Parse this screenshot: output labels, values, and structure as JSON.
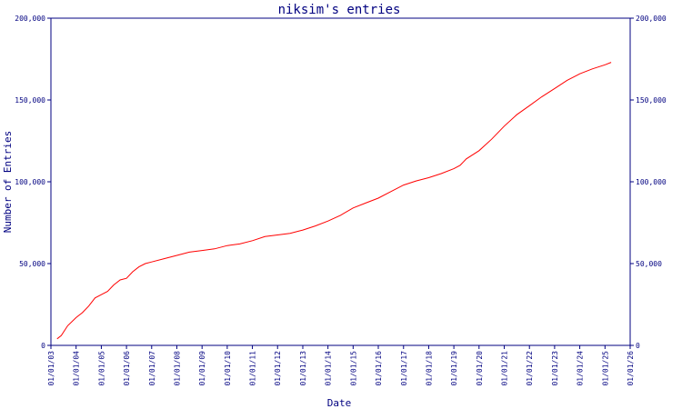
{
  "chart_data": {
    "type": "line",
    "title": "niksim's entries",
    "xlabel": "Date",
    "ylabel": "Number of Entries",
    "x_ticks": [
      "01/01/03",
      "01/01/04",
      "01/01/05",
      "01/01/06",
      "01/01/07",
      "01/01/08",
      "01/01/09",
      "01/01/10",
      "01/01/11",
      "01/01/12",
      "01/01/13",
      "01/01/14",
      "01/01/15",
      "01/01/16",
      "01/01/17",
      "01/01/18",
      "01/01/19",
      "01/01/20",
      "01/01/21",
      "01/01/22",
      "01/01/23",
      "01/01/24",
      "01/01/25",
      "01/01/26"
    ],
    "y_ticks": [
      0,
      50000,
      100000,
      150000,
      200000
    ],
    "y_tick_labels": [
      "0",
      "50,000",
      "100,000",
      "150,000",
      "200,000"
    ],
    "ylim": [
      0,
      200000
    ],
    "xlim": [
      "2003-01-01",
      "2026-01-01"
    ],
    "grid": false,
    "right_axis_mirrored": true,
    "series_color": "#ff0000",
    "axis_color": "#000080",
    "series": [
      {
        "x": [
          "2003-04-01",
          "2003-06-01",
          "2003-09-01",
          "2004-01-01",
          "2004-04-01",
          "2004-07-01",
          "2004-10-01",
          "2005-01-01",
          "2005-04-01",
          "2005-07-01",
          "2005-10-01",
          "2006-01-01",
          "2006-04-01",
          "2006-07-01",
          "2006-10-01",
          "2007-01-01",
          "2007-07-01",
          "2008-01-01",
          "2008-07-01",
          "2009-01-01",
          "2009-07-01",
          "2010-01-01",
          "2010-07-01",
          "2011-01-01",
          "2011-07-01",
          "2012-01-01",
          "2012-07-01",
          "2013-01-01",
          "2013-07-01",
          "2014-01-01",
          "2014-07-01",
          "2015-01-01",
          "2015-07-01",
          "2016-01-01",
          "2016-07-01",
          "2017-01-01",
          "2017-07-01",
          "2018-01-01",
          "2018-07-01",
          "2019-01-01",
          "2019-04-01",
          "2019-07-01",
          "2020-01-01",
          "2020-07-01",
          "2021-01-01",
          "2021-07-01",
          "2022-01-01",
          "2022-07-01",
          "2023-01-01",
          "2023-07-01",
          "2024-01-01",
          "2024-07-01",
          "2025-01-01",
          "2025-04-01"
        ],
        "values": [
          4000,
          6000,
          12000,
          17000,
          20000,
          24000,
          29000,
          31000,
          33000,
          37000,
          40000,
          41000,
          45000,
          48000,
          50000,
          51000,
          53000,
          55000,
          57000,
          58000,
          59000,
          61000,
          62000,
          64000,
          66500,
          67500,
          68500,
          70500,
          73000,
          76000,
          79500,
          84000,
          87000,
          90000,
          94000,
          98000,
          100500,
          102500,
          105000,
          108000,
          110000,
          114000,
          119000,
          126000,
          134000,
          141000,
          146500,
          152000,
          157000,
          162000,
          166000,
          169000,
          171500,
          173000
        ]
      }
    ]
  }
}
